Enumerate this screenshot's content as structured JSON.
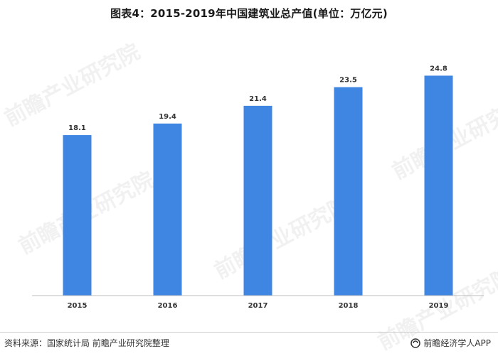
{
  "chart_data": {
    "type": "bar",
    "title": "图表4：2015-2019年中国建筑业总产值(单位：万亿元)",
    "categories": [
      "2015",
      "2016",
      "2017",
      "2018",
      "2019"
    ],
    "values": [
      18.1,
      19.4,
      21.4,
      23.5,
      24.8
    ],
    "data_labels": [
      "18.1",
      "19.4",
      "21.4",
      "23.5",
      "24.8"
    ],
    "ylim": [
      0,
      27
    ],
    "grid": false,
    "legend": "none",
    "bar_color": "#3f86e3",
    "axis_color": "#bdbdbd"
  },
  "footer": {
    "source": "资料来源：国家统计局 前瞻产业研究院整理",
    "brand": "前瞻经济学人APP"
  },
  "watermark": "前瞻产业研究院"
}
